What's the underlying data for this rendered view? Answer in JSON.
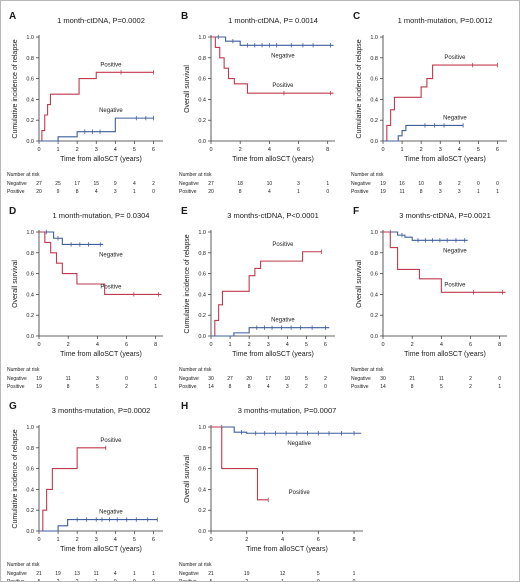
{
  "chart_data": [
    {
      "type": "line",
      "panel": "A",
      "title": "1 month-ctDNA, P=0.0002",
      "ylabel": "Cumulative incidence of relapse",
      "xlabel": "Time from alloSCT (years)",
      "xlim": [
        0,
        6.5
      ],
      "ylim": [
        0,
        1.0
      ],
      "x_ticks": [
        0,
        1,
        2,
        3,
        4,
        5,
        6
      ],
      "y_ticks": [
        "0.0",
        "0.2",
        "0.4",
        "0.6",
        "0.8",
        "1.0"
      ],
      "series": [
        {
          "name": "Positive",
          "color": "#c03a4f",
          "x": [
            0,
            0.15,
            0.3,
            0.45,
            0.6,
            1.1,
            2.1,
            3.0,
            6.0
          ],
          "y": [
            0,
            0.1,
            0.25,
            0.35,
            0.45,
            0.45,
            0.6,
            0.66,
            0.66
          ],
          "censor_x": [
            4.3,
            6.0
          ],
          "censor_y": [
            0.66,
            0.66
          ]
        },
        {
          "name": "Negative",
          "color": "#3f5e9b",
          "x": [
            0,
            0.6,
            1.0,
            2.0,
            4.0,
            6.0
          ],
          "y": [
            0,
            0,
            0.04,
            0.09,
            0.22,
            0.22
          ],
          "censor_x": [
            2.4,
            2.8,
            3.2,
            5.1,
            5.6,
            6.0
          ],
          "censor_y": [
            0.09,
            0.09,
            0.09,
            0.22,
            0.22,
            0.22
          ]
        }
      ],
      "risk": {
        "header": "Number at risk",
        "times": [
          0,
          1,
          2,
          3,
          4,
          5,
          6
        ],
        "rows": [
          {
            "label": "Negative",
            "values": [
              "27",
              "25",
              "17",
              "15",
              "9",
              "4",
              "2"
            ]
          },
          {
            "label": "Positive",
            "values": [
              "20",
              "9",
              "8",
              "4",
              "3",
              "1",
              "0"
            ]
          }
        ]
      }
    },
    {
      "type": "line",
      "panel": "B",
      "title": "1 month-ctDNA, P= 0.0014",
      "ylabel": "Overall survival",
      "xlabel": "Time from alloSCT (years)",
      "xlim": [
        0,
        8.5
      ],
      "ylim": [
        0,
        1.0
      ],
      "x_ticks": [
        0,
        2,
        4,
        6,
        8
      ],
      "y_ticks": [
        "0.0",
        "0.2",
        "0.4",
        "0.6",
        "0.8",
        "1.0"
      ],
      "series": [
        {
          "name": "Negative",
          "color": "#3f5e9b",
          "x": [
            0,
            1.0,
            2.0,
            8.4
          ],
          "y": [
            1.0,
            0.96,
            0.92,
            0.92
          ],
          "censor_x": [
            0.5,
            1.5,
            2.5,
            3.0,
            3.5,
            4.0,
            4.5,
            5.5,
            6.3,
            7.0,
            8.2
          ],
          "censor_y": [
            1.0,
            0.96,
            0.92,
            0.92,
            0.92,
            0.92,
            0.92,
            0.92,
            0.92,
            0.92,
            0.92
          ]
        },
        {
          "name": "Positive",
          "color": "#c03a4f",
          "x": [
            0,
            0.3,
            0.6,
            0.9,
            1.2,
            1.6,
            2.5,
            8.4
          ],
          "y": [
            1.0,
            0.9,
            0.8,
            0.7,
            0.6,
            0.55,
            0.46,
            0.46
          ],
          "censor_x": [
            5.0,
            8.2
          ],
          "censor_y": [
            0.46,
            0.46
          ]
        }
      ],
      "risk": {
        "header": "Number at risk",
        "times": [
          0,
          2,
          4,
          6,
          8
        ],
        "rows": [
          {
            "label": "Negative",
            "values": [
              "27",
              "18",
              "10",
              "3",
              "1"
            ]
          },
          {
            "label": "Positive",
            "values": [
              "20",
              "8",
              "4",
              "1",
              "0"
            ]
          }
        ]
      }
    },
    {
      "type": "line",
      "panel": "C",
      "title": "1 month-mutation, P=0.0012",
      "ylabel": "Cumulative incidence of relapse",
      "xlabel": "Time from alloSCT (years)",
      "xlim": [
        0,
        6.5
      ],
      "ylim": [
        0,
        1.0
      ],
      "x_ticks": [
        0,
        1,
        2,
        3,
        4,
        5,
        6
      ],
      "y_ticks": [
        "0.0",
        "0.2",
        "0.4",
        "0.6",
        "0.8",
        "1.0"
      ],
      "series": [
        {
          "name": "Positive",
          "color": "#c03a4f",
          "x": [
            0,
            0.2,
            0.4,
            0.6,
            1.1,
            2.0,
            2.3,
            2.6,
            6.0
          ],
          "y": [
            0,
            0.15,
            0.3,
            0.42,
            0.42,
            0.52,
            0.6,
            0.73,
            0.73
          ],
          "censor_x": [
            4.7,
            6.0
          ],
          "censor_y": [
            0.73,
            0.73
          ]
        },
        {
          "name": "Negative",
          "color": "#3f5e9b",
          "x": [
            0,
            0.6,
            0.8,
            1.0,
            1.2,
            4.2
          ],
          "y": [
            0,
            0,
            0.05,
            0.1,
            0.15,
            0.15
          ],
          "censor_x": [
            2.2,
            2.7,
            3.2,
            4.2
          ],
          "censor_y": [
            0.15,
            0.15,
            0.15,
            0.15
          ]
        }
      ],
      "risk": {
        "header": "Number at risk",
        "times": [
          0,
          1,
          2,
          3,
          4,
          5,
          6
        ],
        "rows": [
          {
            "label": "Negative",
            "values": [
              "19",
              "16",
              "10",
              "8",
              "2",
              "0",
              "0"
            ]
          },
          {
            "label": "Positive",
            "values": [
              "19",
              "11",
              "8",
              "3",
              "3",
              "1",
              "1"
            ]
          }
        ]
      }
    },
    {
      "type": "line",
      "panel": "D",
      "title": "1 month-mutation, P= 0.0304",
      "ylabel": "Overall survival",
      "xlabel": "Time from alloSCT (years)",
      "xlim": [
        0,
        8.5
      ],
      "ylim": [
        0,
        1.0
      ],
      "x_ticks": [
        0,
        2,
        4,
        6,
        8
      ],
      "y_ticks": [
        "0.0",
        "0.2",
        "0.4",
        "0.6",
        "0.8",
        "1.0"
      ],
      "series": [
        {
          "name": "Negative",
          "color": "#3f5e9b",
          "x": [
            0,
            1.0,
            1.6,
            4.4
          ],
          "y": [
            1.0,
            0.94,
            0.88,
            0.88
          ],
          "censor_x": [
            0.5,
            1.3,
            2.2,
            2.8,
            3.4,
            4.2
          ],
          "censor_y": [
            1.0,
            0.94,
            0.88,
            0.88,
            0.88,
            0.88
          ]
        },
        {
          "name": "Positive",
          "color": "#c03a4f",
          "x": [
            0,
            0.4,
            0.8,
            1.2,
            1.6,
            2.6,
            4.5,
            8.4
          ],
          "y": [
            1.0,
            0.9,
            0.8,
            0.7,
            0.6,
            0.5,
            0.4,
            0.4
          ],
          "censor_x": [
            6.5,
            8.2
          ],
          "censor_y": [
            0.4,
            0.4
          ]
        }
      ],
      "risk": {
        "header": "Number at risk",
        "times": [
          0,
          2,
          4,
          6,
          8
        ],
        "rows": [
          {
            "label": "Negative",
            "values": [
              "19",
              "11",
              "3",
              "0",
              "0"
            ]
          },
          {
            "label": "Positive",
            "values": [
              "19",
              "8",
              "5",
              "2",
              "1"
            ]
          }
        ]
      }
    },
    {
      "type": "line",
      "panel": "E",
      "title": "3 months-ctDNA, P<0.0001",
      "ylabel": "Cumulative incidence of relapse",
      "xlabel": "Time from alloSCT (years)",
      "xlim": [
        0,
        6.5
      ],
      "ylim": [
        0,
        1.0
      ],
      "x_ticks": [
        0,
        1,
        2,
        3,
        4,
        5,
        6
      ],
      "y_ticks": [
        "0.0",
        "0.2",
        "0.4",
        "0.6",
        "0.8",
        "1.0"
      ],
      "series": [
        {
          "name": "Positive",
          "color": "#c03a4f",
          "x": [
            0,
            0.2,
            0.4,
            0.6,
            1.7,
            2.0,
            2.3,
            2.6,
            4.8,
            5.8
          ],
          "y": [
            0,
            0.15,
            0.3,
            0.43,
            0.43,
            0.58,
            0.65,
            0.72,
            0.81,
            0.81
          ],
          "censor_x": [
            5.8
          ],
          "censor_y": [
            0.81
          ]
        },
        {
          "name": "Negative",
          "color": "#3f5e9b",
          "x": [
            0,
            0.8,
            1.2,
            2.0,
            6.2
          ],
          "y": [
            0,
            0,
            0.03,
            0.08,
            0.08
          ],
          "censor_x": [
            2.4,
            2.8,
            3.2,
            3.7,
            4.2,
            4.7,
            5.3,
            6.0
          ],
          "censor_y": [
            0.08,
            0.08,
            0.08,
            0.08,
            0.08,
            0.08,
            0.08,
            0.08
          ]
        }
      ],
      "risk": {
        "header": "Number at risk",
        "times": [
          0,
          1,
          2,
          3,
          4,
          5,
          6
        ],
        "rows": [
          {
            "label": "Negative",
            "values": [
              "30",
              "27",
              "20",
              "17",
              "10",
              "5",
              "2"
            ]
          },
          {
            "label": "Positive",
            "values": [
              "14",
              "8",
              "8",
              "4",
              "3",
              "2",
              "0"
            ]
          }
        ]
      }
    },
    {
      "type": "line",
      "panel": "F",
      "title": "3 months-ctDNA, P=0.0021",
      "ylabel": "Overall survival",
      "xlabel": "Time from alloSCT (years)",
      "xlim": [
        0,
        8.5
      ],
      "ylim": [
        0,
        1.0
      ],
      "x_ticks": [
        0,
        2,
        4,
        6,
        8
      ],
      "y_ticks": [
        "0.0",
        "0.2",
        "0.4",
        "0.6",
        "0.8",
        "1.0"
      ],
      "series": [
        {
          "name": "Negative",
          "color": "#3f5e9b",
          "x": [
            0,
            1.0,
            1.5,
            2.0,
            5.8
          ],
          "y": [
            1.0,
            0.97,
            0.95,
            0.92,
            0.92
          ],
          "censor_x": [
            0.5,
            1.3,
            2.4,
            2.9,
            3.4,
            3.9,
            4.4,
            5.0,
            5.6
          ],
          "censor_y": [
            1.0,
            0.97,
            0.92,
            0.92,
            0.92,
            0.92,
            0.92,
            0.92,
            0.92
          ]
        },
        {
          "name": "Positive",
          "color": "#c03a4f",
          "x": [
            0,
            0.5,
            1.0,
            2.5,
            4.0,
            8.4
          ],
          "y": [
            1.0,
            0.85,
            0.64,
            0.55,
            0.42,
            0.42
          ],
          "censor_x": [
            6.2,
            8.2
          ],
          "censor_y": [
            0.42,
            0.42
          ]
        }
      ],
      "risk": {
        "header": "Number at risk",
        "times": [
          0,
          2,
          4,
          6,
          8
        ],
        "rows": [
          {
            "label": "Negative",
            "values": [
              "30",
              "21",
              "11",
              "2",
              "0"
            ]
          },
          {
            "label": "Positive",
            "values": [
              "14",
              "8",
              "5",
              "2",
              "1"
            ]
          }
        ]
      }
    },
    {
      "type": "line",
      "panel": "G",
      "title": "3 months-mutation, P=0.0002",
      "ylabel": "Cumulative incidence of relapse",
      "xlabel": "Time from alloSCT (years)",
      "xlim": [
        0,
        6.5
      ],
      "ylim": [
        0,
        1.0
      ],
      "x_ticks": [
        0,
        1,
        2,
        3,
        4,
        5,
        6
      ],
      "y_ticks": [
        "0.0",
        "0.2",
        "0.4",
        "0.6",
        "0.8",
        "1.0"
      ],
      "series": [
        {
          "name": "Positive",
          "color": "#c03a4f",
          "x": [
            0,
            0.2,
            0.4,
            0.7,
            2.0,
            3.5
          ],
          "y": [
            0,
            0.2,
            0.4,
            0.6,
            0.8,
            0.8
          ],
          "censor_x": [
            3.5
          ],
          "censor_y": [
            0.8
          ]
        },
        {
          "name": "Negative",
          "color": "#3f5e9b",
          "x": [
            0,
            0.6,
            1.0,
            1.5,
            6.2
          ],
          "y": [
            0,
            0,
            0.05,
            0.11,
            0.11
          ],
          "censor_x": [
            2.0,
            2.5,
            3.0,
            3.3,
            3.7,
            4.1,
            4.6,
            5.1,
            5.7,
            6.2
          ],
          "censor_y": [
            0.11,
            0.11,
            0.11,
            0.11,
            0.11,
            0.11,
            0.11,
            0.11,
            0.11,
            0.11
          ]
        }
      ],
      "risk": {
        "header": "Number at risk",
        "times": [
          0,
          1,
          2,
          3,
          4,
          5,
          6
        ],
        "rows": [
          {
            "label": "Negative",
            "values": [
              "21",
              "19",
              "13",
              "11",
              "4",
              "1",
              "1"
            ]
          },
          {
            "label": "Positive",
            "values": [
              "5",
              "2",
              "2",
              "1",
              "0",
              "0",
              "0"
            ]
          }
        ]
      }
    },
    {
      "type": "line",
      "panel": "H",
      "title": "3 months-mutation, P=0.0007",
      "ylabel": "Overall survival",
      "xlabel": "Time from alloSCT (years)",
      "xlim": [
        0,
        8.5
      ],
      "ylim": [
        0,
        1.0
      ],
      "x_ticks": [
        0,
        2,
        4,
        6,
        8
      ],
      "y_ticks": [
        "0.0",
        "0.2",
        "0.4",
        "0.6",
        "0.8",
        "1.0"
      ],
      "series": [
        {
          "name": "Negative",
          "color": "#3f5e9b",
          "x": [
            0,
            1.3,
            2.0,
            8.4
          ],
          "y": [
            1.0,
            0.95,
            0.94,
            0.94
          ],
          "censor_x": [
            0.6,
            1.7,
            2.5,
            3.0,
            3.6,
            4.2,
            4.8,
            5.4,
            6.0,
            6.6,
            7.3,
            8.0
          ],
          "censor_y": [
            1.0,
            0.95,
            0.94,
            0.94,
            0.94,
            0.94,
            0.94,
            0.94,
            0.94,
            0.94,
            0.94,
            0.94
          ]
        },
        {
          "name": "Positive",
          "color": "#c03a4f",
          "x": [
            0,
            0.6,
            2.6,
            3.2
          ],
          "y": [
            1.0,
            0.6,
            0.3,
            0.3
          ],
          "censor_x": [
            3.2
          ],
          "censor_y": [
            0.3
          ]
        }
      ],
      "risk": {
        "header": "Number at risk",
        "times": [
          0,
          2,
          4,
          6,
          8
        ],
        "rows": [
          {
            "label": "Negative",
            "values": [
              "21",
              "19",
              "12",
              "5",
              "1"
            ]
          },
          {
            "label": "Positive",
            "values": [
              "5",
              "2",
              "1",
              "0",
              "0"
            ]
          }
        ]
      }
    }
  ]
}
